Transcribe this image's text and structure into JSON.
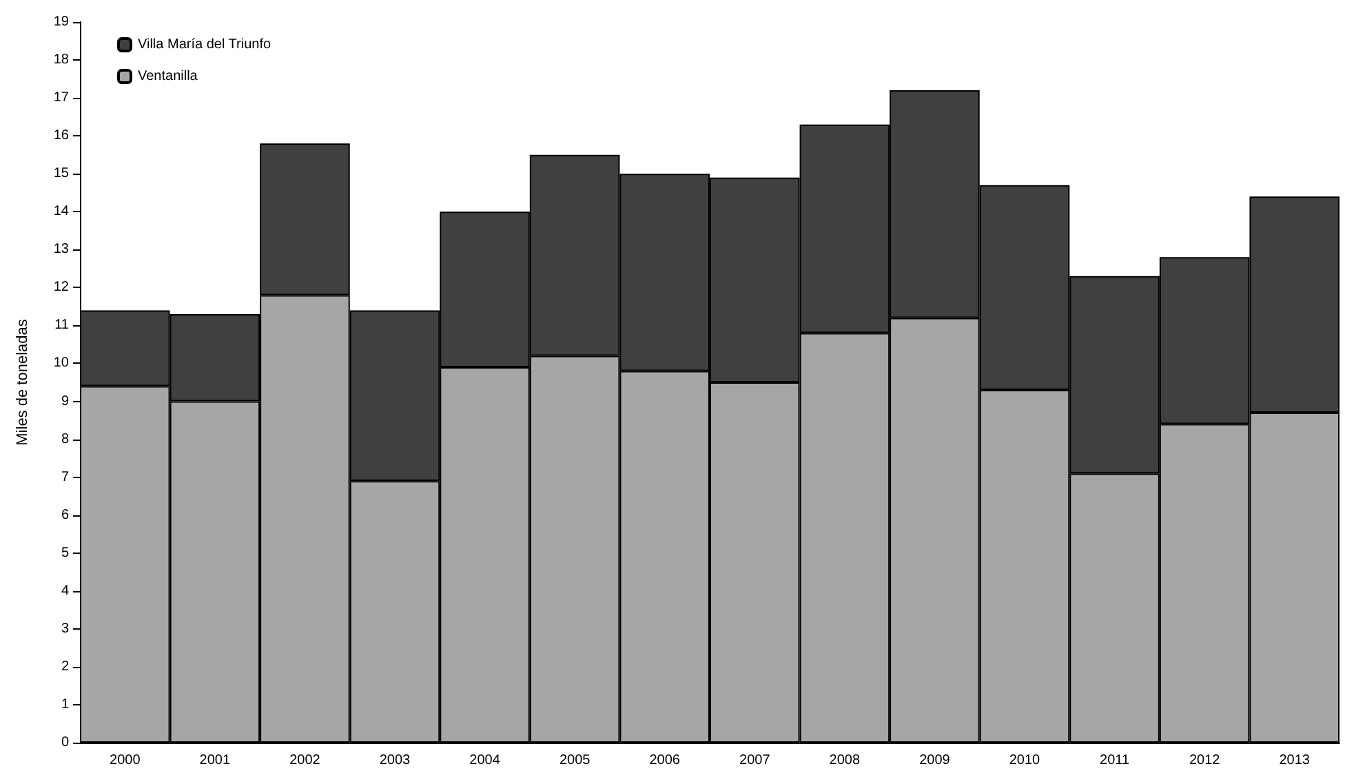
{
  "chart_data": {
    "type": "bar",
    "stacked": true,
    "ylabel": "Miles de toneladas",
    "categories": [
      "2000",
      "2001",
      "2002",
      "2003",
      "2004",
      "2005",
      "2006",
      "2007",
      "2008",
      "2009",
      "2010",
      "2011",
      "2012",
      "2013"
    ],
    "series": [
      {
        "name": "Ventanilla",
        "color": "#a6a6a6",
        "values": [
          9.4,
          9.0,
          11.8,
          6.9,
          9.9,
          10.2,
          9.8,
          9.5,
          10.8,
          11.2,
          9.3,
          7.1,
          8.4,
          8.7
        ]
      },
      {
        "name": "Villa María del Triunfo",
        "color": "#404040",
        "values": [
          2.0,
          2.3,
          4.0,
          4.5,
          4.1,
          5.3,
          5.2,
          5.4,
          5.5,
          6.0,
          5.4,
          5.2,
          4.4,
          5.7
        ]
      }
    ],
    "ylim": [
      0,
      19
    ],
    "yticks": [
      0,
      1,
      2,
      3,
      4,
      5,
      6,
      7,
      8,
      9,
      10,
      11,
      12,
      13,
      14,
      15,
      16,
      17,
      18,
      19
    ],
    "grid": false,
    "legend": "top left"
  }
}
